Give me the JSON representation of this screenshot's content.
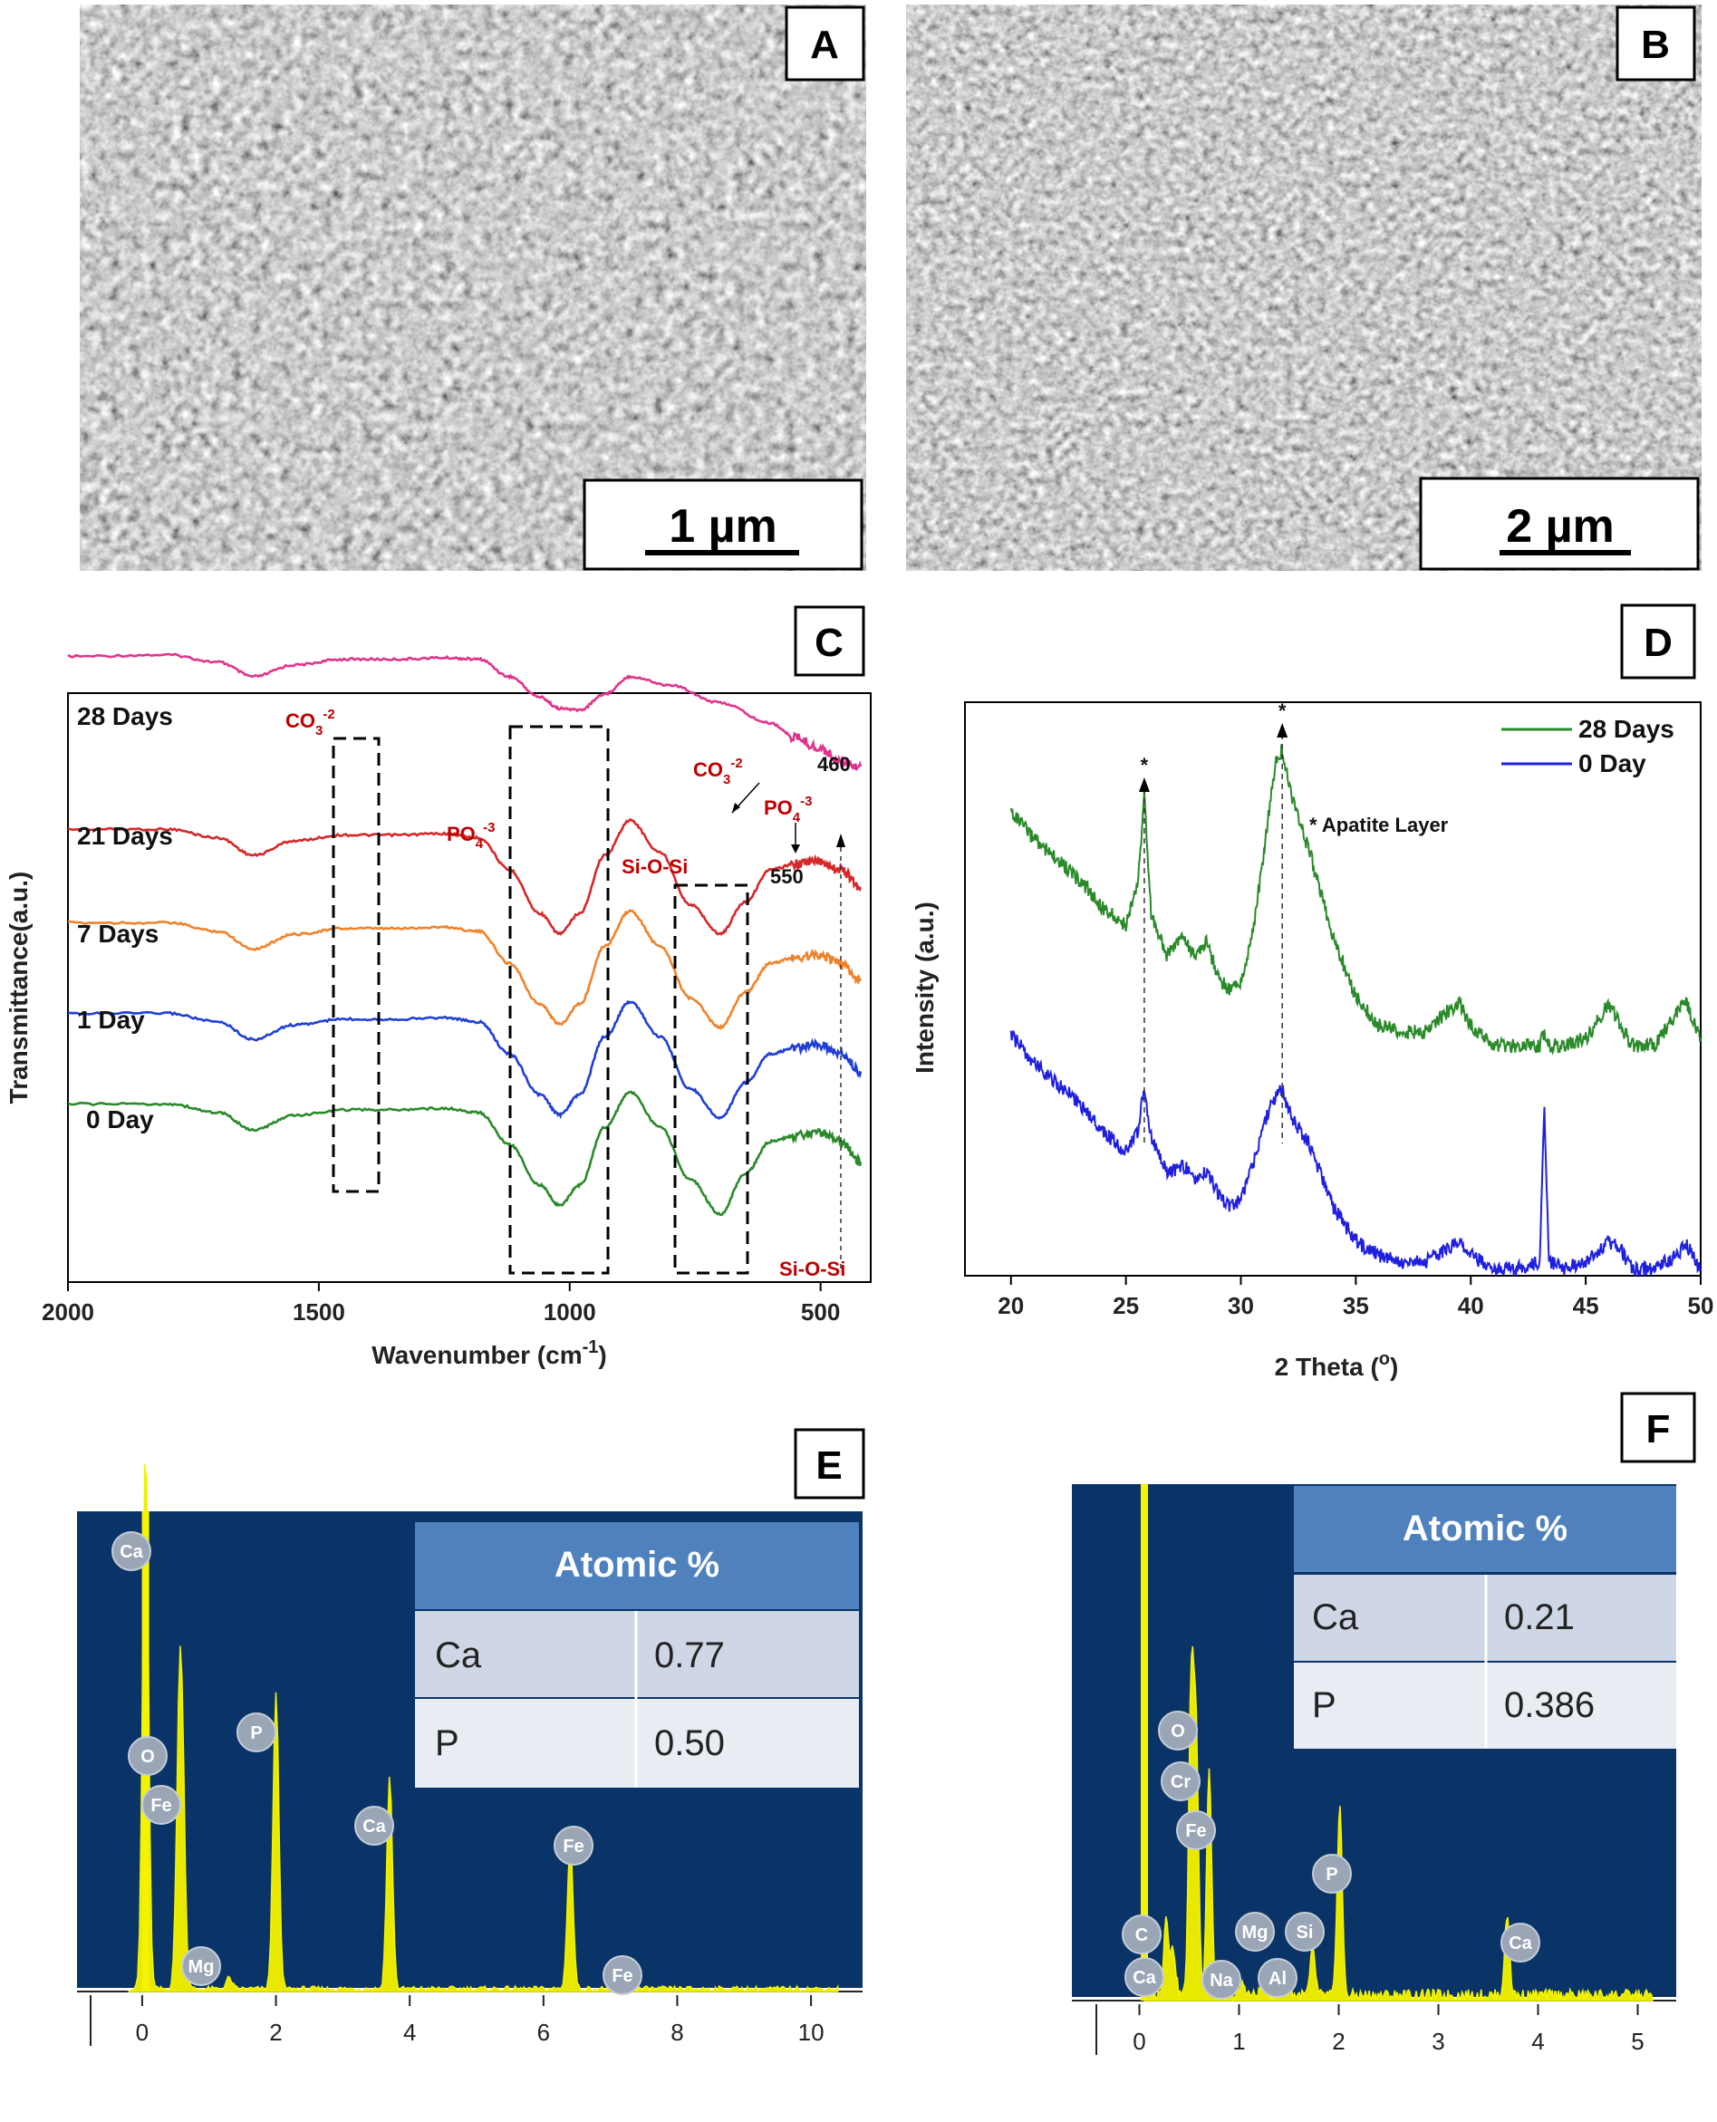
{
  "panels": {
    "A": {
      "letter": "A",
      "scale_bar": "1 µm"
    },
    "B": {
      "letter": "B",
      "scale_bar": "2 µm"
    },
    "C": {
      "letter": "C"
    },
    "D": {
      "letter": "D"
    },
    "E": {
      "letter": "E"
    },
    "F": {
      "letter": "F"
    }
  },
  "chart_data": [
    {
      "id": "C",
      "type": "line",
      "xlabel": "Wavenumber (cm",
      "xlabel_sup": "-1",
      "xlabel_end": ")",
      "ylabel": "Transmittance(a.u.)",
      "xlim": [
        2000,
        400
      ],
      "xticks": [
        2000,
        1500,
        1000,
        500
      ],
      "series": [
        {
          "name": "28 Days",
          "color": "#e0348c",
          "offset": 4,
          "x": [
            2000,
            1800,
            1700,
            1630,
            1550,
            1450,
            1350,
            1250,
            1180,
            1120,
            1060,
            1020,
            980,
            930,
            880,
            800,
            700,
            600,
            550,
            500,
            460,
            420
          ],
          "y": [
            0.66,
            0.67,
            0.62,
            0.52,
            0.6,
            0.64,
            0.64,
            0.65,
            0.64,
            0.52,
            0.38,
            0.3,
            0.29,
            0.4,
            0.52,
            0.46,
            0.34,
            0.2,
            0.1,
            0.02,
            -0.06,
            -0.1
          ]
        },
        {
          "name": "21 Days",
          "color": "#d62728",
          "offset": 3,
          "x": [
            2000,
            1800,
            1700,
            1630,
            1550,
            1450,
            1350,
            1250,
            1180,
            1120,
            1060,
            1020,
            980,
            930,
            880,
            820,
            760,
            700,
            650,
            600,
            550,
            500,
            460,
            420
          ],
          "y": [
            0.28,
            0.28,
            0.22,
            0.1,
            0.2,
            0.24,
            0.24,
            0.25,
            0.22,
            0.0,
            -0.3,
            -0.44,
            -0.3,
            0.1,
            0.34,
            0.12,
            -0.24,
            -0.44,
            -0.22,
            0.0,
            0.04,
            0.06,
            0.0,
            -0.12
          ]
        },
        {
          "name": "7 Days",
          "color": "#f0822a",
          "offset": 2,
          "x": [
            2000,
            1800,
            1700,
            1630,
            1550,
            1450,
            1350,
            1250,
            1180,
            1120,
            1060,
            1020,
            980,
            930,
            880,
            820,
            760,
            700,
            650,
            600,
            550,
            500,
            460,
            420
          ],
          "y": [
            0.26,
            0.26,
            0.2,
            0.08,
            0.18,
            0.22,
            0.22,
            0.23,
            0.2,
            -0.02,
            -0.3,
            -0.44,
            -0.3,
            0.1,
            0.34,
            0.1,
            -0.26,
            -0.46,
            -0.22,
            -0.02,
            0.02,
            0.04,
            -0.02,
            -0.14
          ]
        },
        {
          "name": "1 Day",
          "color": "#1f3fd6",
          "offset": 1,
          "x": [
            2000,
            1800,
            1700,
            1630,
            1550,
            1450,
            1350,
            1250,
            1180,
            1120,
            1060,
            1020,
            980,
            930,
            880,
            820,
            760,
            700,
            650,
            600,
            550,
            500,
            460,
            420
          ],
          "y": [
            0.26,
            0.26,
            0.2,
            0.08,
            0.18,
            0.22,
            0.22,
            0.23,
            0.2,
            -0.02,
            -0.3,
            -0.44,
            -0.3,
            0.1,
            0.34,
            0.1,
            -0.26,
            -0.46,
            -0.22,
            -0.02,
            0.02,
            0.04,
            -0.02,
            -0.14
          ]
        },
        {
          "name": "0 Day",
          "color": "#2a8a2a",
          "offset": 0,
          "x": [
            2000,
            1800,
            1700,
            1630,
            1550,
            1450,
            1350,
            1250,
            1180,
            1120,
            1060,
            1020,
            980,
            930,
            880,
            820,
            760,
            700,
            650,
            600,
            550,
            500,
            460,
            420
          ],
          "y": [
            0.26,
            0.26,
            0.2,
            0.08,
            0.18,
            0.22,
            0.22,
            0.23,
            0.2,
            -0.02,
            -0.3,
            -0.44,
            -0.3,
            0.1,
            0.34,
            0.1,
            -0.26,
            -0.5,
            -0.22,
            0.0,
            0.04,
            0.06,
            0.0,
            -0.14
          ]
        }
      ],
      "annotations": {
        "co3_top": "CO",
        "co3_top_sub": "3",
        "co3_top_sup": "-2",
        "po4_left": "PO",
        "po4_left_sub": "4",
        "po4_left_sup": "-3",
        "co3_right": "CO",
        "co3_right_sub": "3",
        "co3_right_sup": "-2",
        "po4_right": "PO",
        "po4_right_sub": "4",
        "po4_right_sup": "-3",
        "sioi_mid": "Si-O-Si",
        "sioi_bottom": "Si-O-Si",
        "w550": "550",
        "w460": "460"
      }
    },
    {
      "id": "D",
      "type": "line",
      "xlabel": "2 Theta (",
      "xlabel_sup": "o",
      "xlabel_end": ")",
      "ylabel": "Intensity (a.u.)",
      "xlim": [
        18,
        50
      ],
      "xticks": [
        20,
        25,
        30,
        35,
        40,
        45,
        50
      ],
      "legend": "top-right",
      "annotation": "* Apatite Layer",
      "star_marks": [
        "*",
        "*"
      ],
      "peaks": [
        25.8,
        31.8
      ],
      "series": [
        {
          "name": "28 Days",
          "color": "#2a8a2a",
          "x": [
            20,
            21,
            22,
            23,
            24,
            25,
            25.5,
            25.8,
            26.1,
            26.8,
            27.5,
            28,
            28.5,
            29,
            29.5,
            30,
            30.5,
            31,
            31.5,
            31.8,
            32.2,
            33,
            34,
            35,
            36,
            37,
            38,
            39,
            39.5,
            40,
            41,
            42,
            43,
            43.2,
            43.4,
            44,
            45,
            46,
            46.5,
            47,
            48,
            49,
            49.3,
            50
          ],
          "y": [
            0.88,
            0.8,
            0.74,
            0.68,
            0.6,
            0.55,
            0.66,
            0.92,
            0.58,
            0.46,
            0.52,
            0.46,
            0.5,
            0.4,
            0.36,
            0.38,
            0.52,
            0.76,
            1.02,
            1.06,
            0.92,
            0.76,
            0.52,
            0.34,
            0.26,
            0.24,
            0.24,
            0.3,
            0.32,
            0.26,
            0.2,
            0.2,
            0.2,
            0.24,
            0.2,
            0.2,
            0.22,
            0.32,
            0.26,
            0.2,
            0.2,
            0.3,
            0.34,
            0.22
          ]
        },
        {
          "name": "0 Day",
          "color": "#1f1fe0",
          "x": [
            20,
            21,
            22,
            23,
            24,
            25,
            25.5,
            25.8,
            26.1,
            26.8,
            27.5,
            28,
            28.5,
            29,
            29.5,
            30,
            30.5,
            31,
            31.5,
            31.8,
            32.2,
            33,
            34,
            35,
            36,
            37,
            38,
            39,
            39.5,
            40,
            41,
            42,
            43,
            43.2,
            43.4,
            44,
            45,
            46,
            46.5,
            47,
            48,
            49,
            49.3,
            50
          ],
          "y": [
            0.6,
            0.52,
            0.46,
            0.4,
            0.32,
            0.26,
            0.32,
            0.44,
            0.3,
            0.2,
            0.22,
            0.18,
            0.2,
            0.14,
            0.1,
            0.12,
            0.22,
            0.34,
            0.42,
            0.44,
            0.36,
            0.28,
            0.1,
            0.0,
            -0.04,
            -0.06,
            -0.06,
            -0.02,
            0.0,
            -0.04,
            -0.08,
            -0.08,
            -0.06,
            0.4,
            -0.06,
            -0.08,
            -0.06,
            0.0,
            -0.02,
            -0.08,
            -0.08,
            -0.04,
            0.0,
            -0.08
          ]
        }
      ]
    },
    {
      "id": "E",
      "type": "bar",
      "xlim": [
        -0.5,
        10.5
      ],
      "xticks": [
        0,
        2,
        4,
        6,
        8,
        10
      ],
      "peaks": [
        {
          "label": "Ca",
          "x": 0.05,
          "h": 1.0
        },
        {
          "label": "O",
          "x": 0.55,
          "h": 0.39
        },
        {
          "label": "Fe",
          "x": 0.6,
          "h": 0.36
        },
        {
          "label": "Mg",
          "x": 1.3,
          "h": 0.02
        },
        {
          "label": "P",
          "x": 2.0,
          "h": 0.55
        },
        {
          "label": "Ca",
          "x": 3.7,
          "h": 0.39
        },
        {
          "label": "Fe",
          "x": 6.4,
          "h": 0.27
        },
        {
          "label": "Fe",
          "x": 7.05,
          "h": 0.04
        }
      ],
      "table": {
        "header": "Atomic %",
        "rows": [
          [
            "Ca",
            "0.77"
          ],
          [
            "P",
            "0.50"
          ]
        ]
      }
    },
    {
      "id": "F",
      "type": "bar",
      "xlim": [
        -0.25,
        5.25
      ],
      "xticks": [
        0,
        1,
        2,
        3,
        4,
        5
      ],
      "peaks": [
        {
          "label": "C",
          "x": 0.27,
          "h": 0.07
        },
        {
          "label": "Ca",
          "x": 0.34,
          "h": 0.04
        },
        {
          "label": "O",
          "x": 0.52,
          "h": 0.27
        },
        {
          "label": "Cr",
          "x": 0.57,
          "h": 0.22
        },
        {
          "label": "Fe",
          "x": 0.7,
          "h": 0.2
        },
        {
          "label": "Na",
          "x": 1.04,
          "h": 0.01
        },
        {
          "label": "Mg",
          "x": 1.25,
          "h": 0.02
        },
        {
          "label": "Al",
          "x": 1.49,
          "h": 0.01
        },
        {
          "label": "Si",
          "x": 1.74,
          "h": 0.04
        },
        {
          "label": "P",
          "x": 2.01,
          "h": 0.17
        },
        {
          "label": "Ca",
          "x": 3.69,
          "h": 0.07
        }
      ],
      "table": {
        "header": "Atomic %",
        "rows": [
          [
            "Ca",
            "0.21"
          ],
          [
            "P",
            "0.386"
          ]
        ]
      }
    }
  ]
}
